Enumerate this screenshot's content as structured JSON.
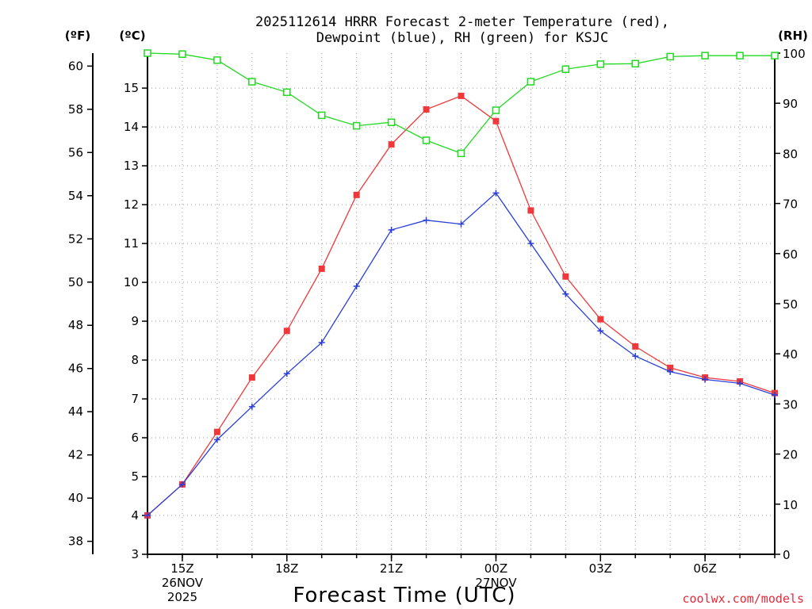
{
  "chart_data": {
    "type": "line",
    "title_line1": "2025112614 HRRR Forecast 2-meter Temperature (red),",
    "title_line2": "Dewpoint (blue), RH (green) for KSJC",
    "xlabel": "Forecast Time (UTC)",
    "credit": "coolwx.com/models",
    "units": {
      "fahrenheit": "(ºF)",
      "celsius": "(ºC)",
      "rh": "(RH)"
    },
    "axes": {
      "celsius_range": [
        3,
        15.9
      ],
      "fahrenheit_range": [
        37.4,
        60.6
      ],
      "rh_range": [
        0,
        100
      ],
      "celsius_ticks": [
        "3",
        "4",
        "5",
        "6",
        "7",
        "8",
        "9",
        "10",
        "11",
        "12",
        "13",
        "14",
        "15"
      ],
      "fahrenheit_ticks": [
        "38",
        "40",
        "42",
        "44",
        "46",
        "48",
        "50",
        "52",
        "54",
        "56",
        "58",
        "60"
      ],
      "rh_ticks": [
        "0",
        "10",
        "20",
        "30",
        "40",
        "50",
        "60",
        "70",
        "80",
        "90",
        "100"
      ],
      "grid": true
    },
    "x_hours": [
      14,
      15,
      16,
      17,
      18,
      19,
      20,
      21,
      22,
      23,
      24,
      25,
      26,
      27,
      28,
      29,
      30,
      31,
      32
    ],
    "x_tick_labels": [
      {
        "hour": 15,
        "lines": [
          "15Z",
          "26NOV",
          "2025"
        ]
      },
      {
        "hour": 18,
        "lines": [
          "18Z"
        ]
      },
      {
        "hour": 21,
        "lines": [
          "21Z"
        ]
      },
      {
        "hour": 24,
        "lines": [
          "00Z",
          "27NOV"
        ]
      },
      {
        "hour": 27,
        "lines": [
          "03Z"
        ]
      },
      {
        "hour": 30,
        "lines": [
          "06Z"
        ]
      }
    ],
    "series": [
      {
        "name": "2-meter Temperature",
        "axis": "celsius",
        "color": "#f0383a",
        "marker": "filled-square",
        "values": [
          4.0,
          4.8,
          6.15,
          7.55,
          8.75,
          10.35,
          12.25,
          13.55,
          14.45,
          14.8,
          14.15,
          11.85,
          10.15,
          9.05,
          8.35,
          7.8,
          7.55,
          7.45,
          7.15
        ]
      },
      {
        "name": "Dewpoint",
        "axis": "celsius",
        "color": "#2a3fd8",
        "marker": "plus",
        "values": [
          4.0,
          4.8,
          5.95,
          6.8,
          7.65,
          8.45,
          9.9,
          11.35,
          11.6,
          11.5,
          12.3,
          11.0,
          9.7,
          8.75,
          8.1,
          7.7,
          7.5,
          7.4,
          7.1
        ]
      },
      {
        "name": "Relative Humidity",
        "axis": "rh",
        "color": "#22d922",
        "marker": "open-square",
        "values": [
          100.0,
          99.8,
          98.6,
          94.3,
          92.2,
          87.6,
          85.5,
          86.2,
          82.6,
          80.0,
          88.6,
          94.3,
          96.8,
          97.8,
          97.9,
          99.3,
          99.5,
          99.5,
          99.5
        ]
      }
    ]
  }
}
